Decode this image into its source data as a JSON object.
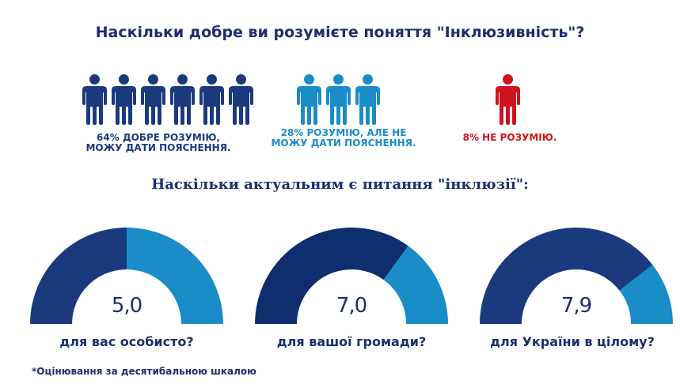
{
  "colors": {
    "dark": "#1b3a7e",
    "light": "#1a8cc8",
    "red": "#d0121c",
    "text": "#1b2f6e"
  },
  "header": {
    "title": "Наскільки добре ви розумієте поняття \"Інклюзивність\"?"
  },
  "understanding": [
    {
      "percent_label": "64%",
      "text": "ДОБРЕ РОЗУМІЮ,",
      "text2": "МОЖУ ДАТИ ПОЯСНЕННЯ.",
      "icons": 6,
      "color": "#1b3a7e"
    },
    {
      "percent_label": "28%",
      "text": "РОЗУМІЮ, АЛЕ НЕ",
      "text2": "МОЖУ ДАТИ ПОЯСНЕННЯ.",
      "icons": 3,
      "color": "#1a8cc8"
    },
    {
      "percent_label": "8%",
      "text": "НЕ РОЗУМІЮ.",
      "text2": "",
      "icons": 1,
      "color": "#d0121c"
    }
  ],
  "section2": {
    "title": "Наскільки актуальним є питання \"інклюзії\":"
  },
  "chart_data": {
    "type": "gauge",
    "scale": [
      0,
      10
    ],
    "categories": [
      "для вас особисто?",
      "для вашої громади?",
      "для України в цілому?"
    ],
    "values": [
      5.0,
      7.0,
      7.9
    ],
    "value_labels": [
      "5,0",
      "7,0",
      "7,9"
    ]
  },
  "footnote": "*Оцінювання за десятибальною шкалою"
}
